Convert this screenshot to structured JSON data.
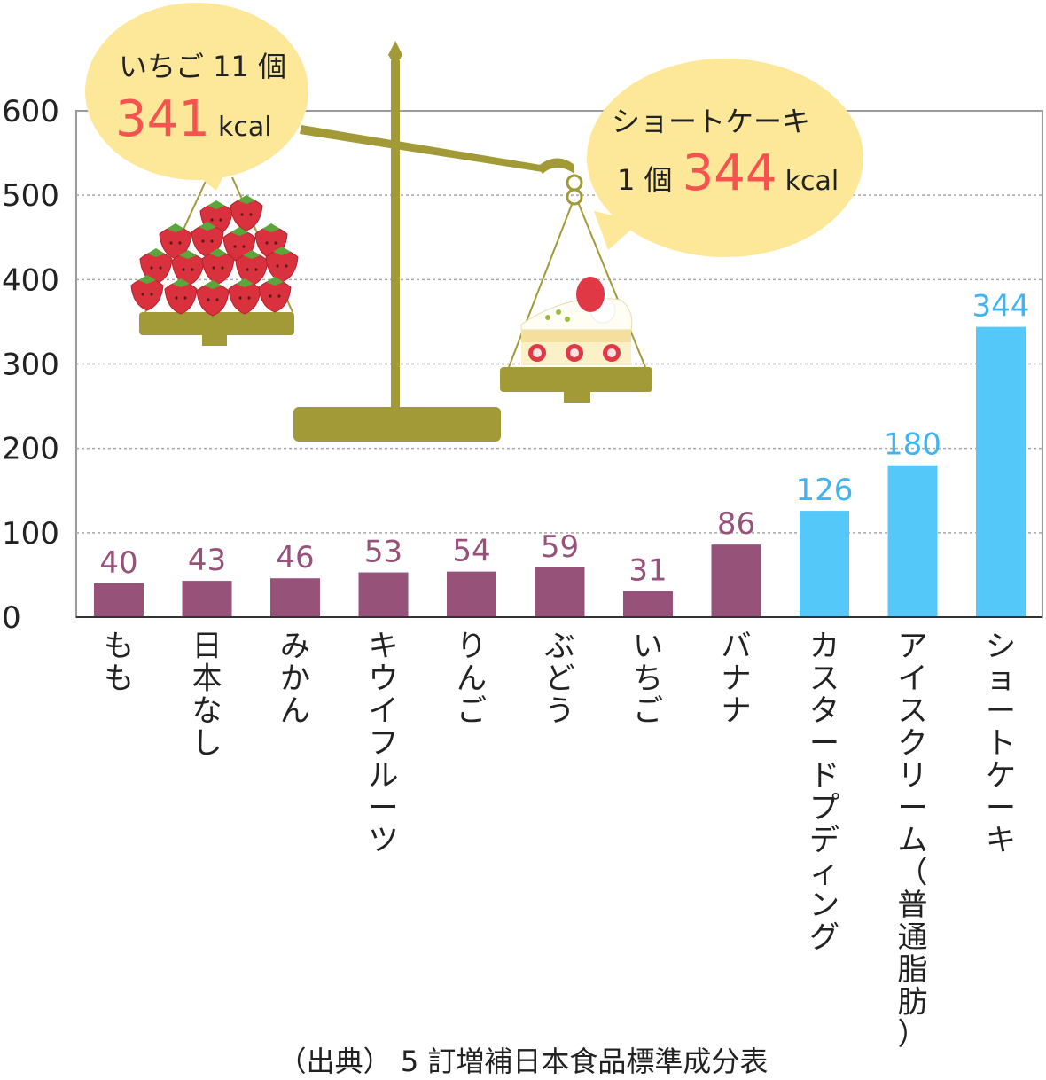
{
  "chart_data": {
    "type": "bar",
    "categories": [
      "もも",
      "日本なし",
      "みかん",
      "キウイフルーツ",
      "りんご",
      "ぶどう",
      "いちご",
      "バナナ",
      "カスタードプディング",
      "アイスクリーム（普通脂肪）",
      "ショートケーキ"
    ],
    "values": [
      40,
      43,
      46,
      53,
      54,
      59,
      31,
      86,
      126,
      180,
      344
    ],
    "value_labels": [
      "40",
      "43",
      "46",
      "53",
      "54",
      "59",
      "31",
      "86",
      "126",
      "180",
      "344"
    ],
    "groups": [
      "fruit",
      "fruit",
      "fruit",
      "fruit",
      "fruit",
      "fruit",
      "fruit",
      "fruit",
      "sweet",
      "sweet",
      "sweet"
    ],
    "ylim": [
      0,
      600
    ],
    "yticks": [
      0,
      100,
      200,
      300,
      400,
      500,
      600
    ],
    "ytick_labels": [
      "0",
      "100",
      "200",
      "300",
      "400",
      "500",
      "600"
    ],
    "grid": true,
    "colors": {
      "fruit": "#97527a",
      "sweet": "#55c8fa",
      "fruit_label": "#97527a",
      "sweet_label": "#3fb4f0"
    },
    "source": "（出典） 5 訂増補日本食品標準成分表"
  },
  "annotations": {
    "left_bubble": {
      "line1": "いちご 11 個",
      "value": "341",
      "unit": "kcal"
    },
    "right_bubble": {
      "line1": "ショートケーキ",
      "prefix": "1 個",
      "value": "344",
      "unit": "kcal"
    },
    "highlight_color": "#f5534f",
    "bubble_color": "#fde899",
    "scale_color": "#a19a36"
  },
  "icons": [
    "balance-scale-icon",
    "strawberries-icon",
    "shortcake-icon"
  ]
}
